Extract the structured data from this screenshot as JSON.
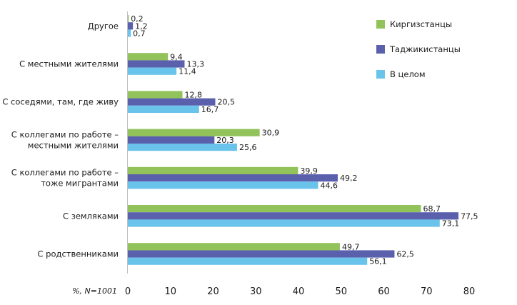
{
  "chart_data": {
    "type": "bar",
    "orientation": "horizontal",
    "categories": [
      [
        "Другое"
      ],
      [
        "С местными жителями"
      ],
      [
        "С соседями, там, где живу"
      ],
      [
        "С коллегами по работе –",
        "местными жителями"
      ],
      [
        "С коллегами по работе –",
        "тоже мигрантами"
      ],
      [
        "С земляками"
      ],
      [
        "С родственниками"
      ]
    ],
    "series": [
      {
        "name": "Киргизстанцы",
        "color": "#92c25a",
        "values": [
          0.2,
          9.4,
          12.8,
          30.9,
          39.9,
          68.7,
          49.7
        ],
        "labels": [
          "0,2",
          "9,4",
          "12,8",
          "30,9",
          "39,9",
          "68,7",
          "49,7"
        ]
      },
      {
        "name": "Таджикистанцы",
        "color": "#5b60ad",
        "values": [
          1.2,
          13.3,
          20.5,
          20.3,
          49.2,
          77.5,
          62.5
        ],
        "labels": [
          "1,2",
          "13,3",
          "20,5",
          "20,3",
          "49,2",
          "77,5",
          "62,5"
        ]
      },
      {
        "name": "В целом",
        "color": "#6ac3ea",
        "values": [
          0.7,
          11.4,
          16.7,
          25.6,
          44.6,
          73.1,
          56.1
        ],
        "labels": [
          "0,7",
          "11,4",
          "16,7",
          "25,6",
          "44,6",
          "73,1",
          "56,1"
        ]
      }
    ],
    "xlim": [
      0,
      80
    ],
    "xticks": [
      0,
      10,
      20,
      30,
      40,
      50,
      60,
      70,
      80
    ],
    "xlabel": "%, N=1001",
    "legend_position": "top-right",
    "grid": false
  }
}
